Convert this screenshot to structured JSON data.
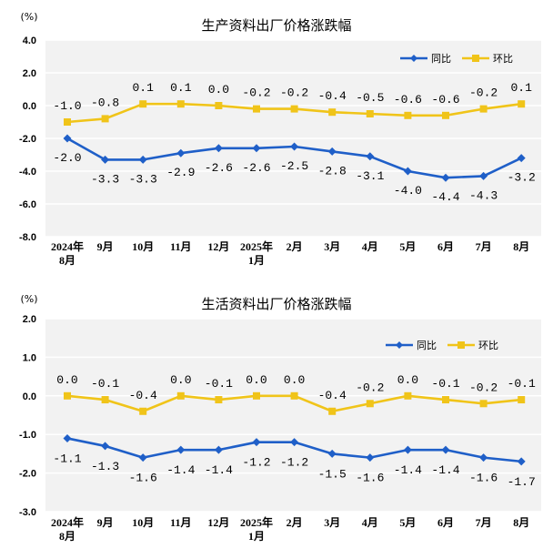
{
  "chart_data": [
    {
      "type": "line",
      "title": "生产资料出厂价格涨跌幅",
      "unit_label": "(%)",
      "categories": [
        [
          "2024年",
          "8月"
        ],
        [
          "9月"
        ],
        [
          "10月"
        ],
        [
          "11月"
        ],
        [
          "12月"
        ],
        [
          "2025年",
          "1月"
        ],
        [
          "2月"
        ],
        [
          "3月"
        ],
        [
          "4月"
        ],
        [
          "5月"
        ],
        [
          "6月"
        ],
        [
          "7月"
        ],
        [
          "8月"
        ]
      ],
      "yticks": [
        "4.0",
        "2.0",
        "0.0",
        "-2.0",
        "-4.0",
        "-6.0",
        "-8.0"
      ],
      "ylim": [
        -8,
        4
      ],
      "grid": true,
      "legend_position": "top-right",
      "series": [
        {
          "name": "同比",
          "color": "#1f5fc8",
          "marker": "diamond",
          "values": [
            -2.0,
            -3.3,
            -3.3,
            -2.9,
            -2.6,
            -2.6,
            -2.5,
            -2.8,
            -3.1,
            -4.0,
            -4.4,
            -4.3,
            -3.2
          ],
          "labels": [
            "-2.0",
            "-3.3",
            "-3.3",
            "-2.9",
            "-2.6",
            "-2.6",
            "-2.5",
            "-2.8",
            "-3.1",
            "-4.0",
            "-4.4",
            "-4.3",
            "-3.2"
          ]
        },
        {
          "name": "环比",
          "color": "#f0c419",
          "marker": "square",
          "values": [
            -1.0,
            -0.8,
            0.1,
            0.1,
            0.0,
            -0.2,
            -0.2,
            -0.4,
            -0.5,
            -0.6,
            -0.6,
            -0.2,
            0.1
          ],
          "labels": [
            "-1.0",
            "-0.8",
            "0.1",
            "0.1",
            "0.0",
            "-0.2",
            "-0.2",
            "-0.4",
            "-0.5",
            "-0.6",
            "-0.6",
            "-0.2",
            "0.1"
          ]
        }
      ]
    },
    {
      "type": "line",
      "title": "生活资料出厂价格涨跌幅",
      "unit_label": "(%)",
      "categories": [
        [
          "2024年",
          "8月"
        ],
        [
          "9月"
        ],
        [
          "10月"
        ],
        [
          "11月"
        ],
        [
          "12月"
        ],
        [
          "2025年",
          "1月"
        ],
        [
          "2月"
        ],
        [
          "3月"
        ],
        [
          "4月"
        ],
        [
          "5月"
        ],
        [
          "6月"
        ],
        [
          "7月"
        ],
        [
          "8月"
        ]
      ],
      "yticks": [
        "2.0",
        "1.0",
        "0.0",
        "-1.0",
        "-2.0",
        "-3.0"
      ],
      "ylim": [
        -3,
        2
      ],
      "grid": true,
      "legend_position": "top-right",
      "series": [
        {
          "name": "同比",
          "color": "#1f5fc8",
          "marker": "diamond",
          "values": [
            -1.1,
            -1.3,
            -1.6,
            -1.4,
            -1.4,
            -1.2,
            -1.2,
            -1.5,
            -1.6,
            -1.4,
            -1.4,
            -1.6,
            -1.7
          ],
          "labels": [
            "-1.1",
            "-1.3",
            "-1.6",
            "-1.4",
            "-1.4",
            "-1.2",
            "-1.2",
            "-1.5",
            "-1.6",
            "-1.4",
            "-1.4",
            "-1.6",
            "-1.7"
          ]
        },
        {
          "name": "环比",
          "color": "#f0c419",
          "marker": "square",
          "values": [
            0.0,
            -0.1,
            -0.4,
            0.0,
            -0.1,
            0.0,
            0.0,
            -0.4,
            -0.2,
            0.0,
            -0.1,
            -0.2,
            -0.1
          ],
          "labels": [
            "0.0",
            "-0.1",
            "-0.4",
            "0.0",
            "-0.1",
            "0.0",
            "0.0",
            "-0.4",
            "-0.2",
            "0.0",
            "-0.1",
            "-0.2",
            "-0.1"
          ]
        }
      ]
    }
  ]
}
